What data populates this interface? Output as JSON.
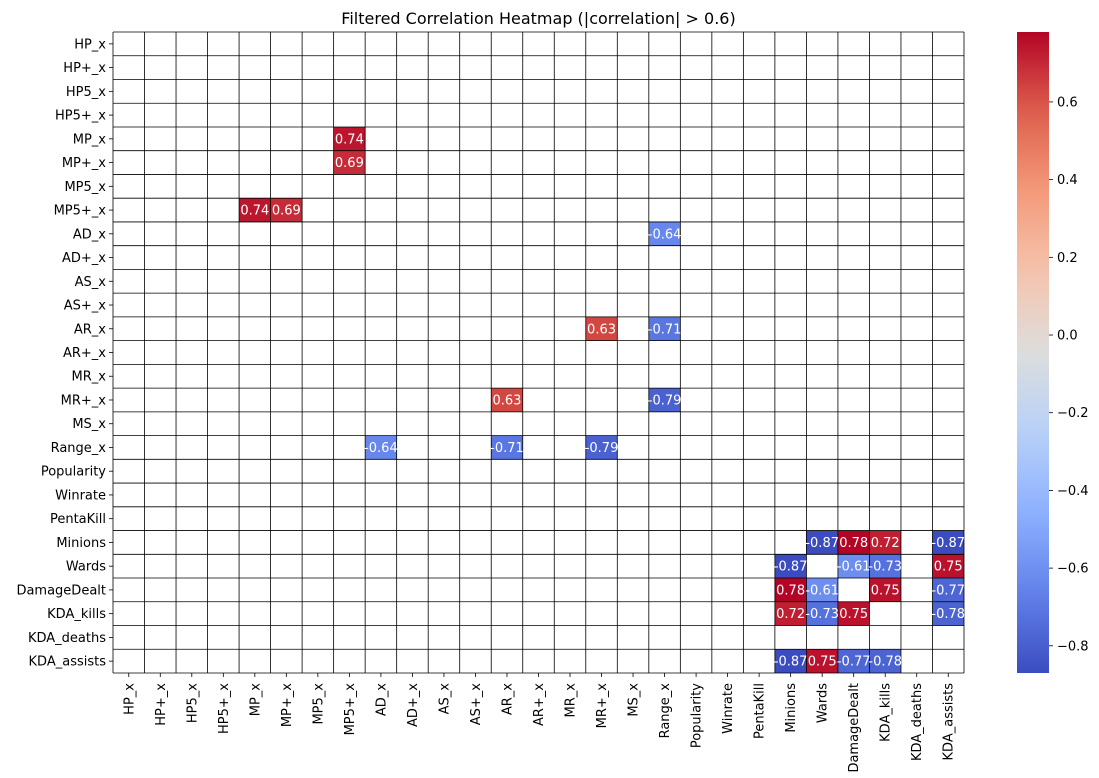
{
  "chart_data": {
    "type": "heatmap",
    "title": "Filtered Correlation Heatmap (|correlation| > 0.6)",
    "xlabel": "",
    "ylabel": "",
    "labels": [
      "HP_x",
      "HP+_x",
      "HP5_x",
      "HP5+_x",
      "MP_x",
      "MP+_x",
      "MP5_x",
      "MP5+_x",
      "AD_x",
      "AD+_x",
      "AS_x",
      "AS+_x",
      "AR_x",
      "AR+_x",
      "MR_x",
      "MR+_x",
      "MS_x",
      "Range_x",
      "Popularity",
      "Winrate",
      "PentaKill",
      "Minions",
      "Wards",
      "DamageDealt",
      "KDA_kills",
      "KDA_deaths",
      "KDA_assists"
    ],
    "cells": [
      {
        "row": "MP_x",
        "col": "MP5+_x",
        "value": 0.74
      },
      {
        "row": "MP+_x",
        "col": "MP5+_x",
        "value": 0.69
      },
      {
        "row": "MP5+_x",
        "col": "MP_x",
        "value": 0.74
      },
      {
        "row": "MP5+_x",
        "col": "MP+_x",
        "value": 0.69
      },
      {
        "row": "AD_x",
        "col": "Range_x",
        "value": -0.64
      },
      {
        "row": "AR_x",
        "col": "MR+_x",
        "value": 0.63
      },
      {
        "row": "AR_x",
        "col": "Range_x",
        "value": -0.71
      },
      {
        "row": "MR+_x",
        "col": "AR_x",
        "value": 0.63
      },
      {
        "row": "MR+_x",
        "col": "Range_x",
        "value": -0.79
      },
      {
        "row": "Range_x",
        "col": "AD_x",
        "value": -0.64
      },
      {
        "row": "Range_x",
        "col": "AR_x",
        "value": -0.71
      },
      {
        "row": "Range_x",
        "col": "MR+_x",
        "value": -0.79
      },
      {
        "row": "Minions",
        "col": "Wards",
        "value": -0.87
      },
      {
        "row": "Minions",
        "col": "DamageDealt",
        "value": 0.78
      },
      {
        "row": "Minions",
        "col": "KDA_kills",
        "value": 0.72
      },
      {
        "row": "Minions",
        "col": "KDA_assists",
        "value": -0.87
      },
      {
        "row": "Wards",
        "col": "Minions",
        "value": -0.87
      },
      {
        "row": "Wards",
        "col": "DamageDealt",
        "value": -0.61
      },
      {
        "row": "Wards",
        "col": "KDA_kills",
        "value": -0.73
      },
      {
        "row": "Wards",
        "col": "KDA_assists",
        "value": 0.75
      },
      {
        "row": "DamageDealt",
        "col": "Minions",
        "value": 0.78
      },
      {
        "row": "DamageDealt",
        "col": "Wards",
        "value": -0.61
      },
      {
        "row": "DamageDealt",
        "col": "KDA_kills",
        "value": 0.75
      },
      {
        "row": "DamageDealt",
        "col": "KDA_assists",
        "value": -0.77
      },
      {
        "row": "KDA_kills",
        "col": "Minions",
        "value": 0.72
      },
      {
        "row": "KDA_kills",
        "col": "Wards",
        "value": -0.73
      },
      {
        "row": "KDA_kills",
        "col": "DamageDealt",
        "value": 0.75
      },
      {
        "row": "KDA_kills",
        "col": "KDA_assists",
        "value": -0.78
      },
      {
        "row": "KDA_assists",
        "col": "Minions",
        "value": -0.87
      },
      {
        "row": "KDA_assists",
        "col": "Wards",
        "value": 0.75
      },
      {
        "row": "KDA_assists",
        "col": "DamageDealt",
        "value": -0.77
      },
      {
        "row": "KDA_assists",
        "col": "KDA_kills",
        "value": -0.78
      }
    ],
    "colorbar": {
      "colormap": "coolwarm",
      "vmin": -0.87,
      "vmax": 0.78,
      "ticks": [
        0.6,
        0.4,
        0.2,
        0.0,
        -0.2,
        -0.4,
        -0.6,
        -0.8
      ],
      "tick_labels": [
        "0.6",
        "0.4",
        "0.2",
        "0.0",
        "−0.2",
        "−0.4",
        "−0.6",
        "−0.8"
      ]
    },
    "grid": true,
    "legend": "colorbar-right"
  }
}
